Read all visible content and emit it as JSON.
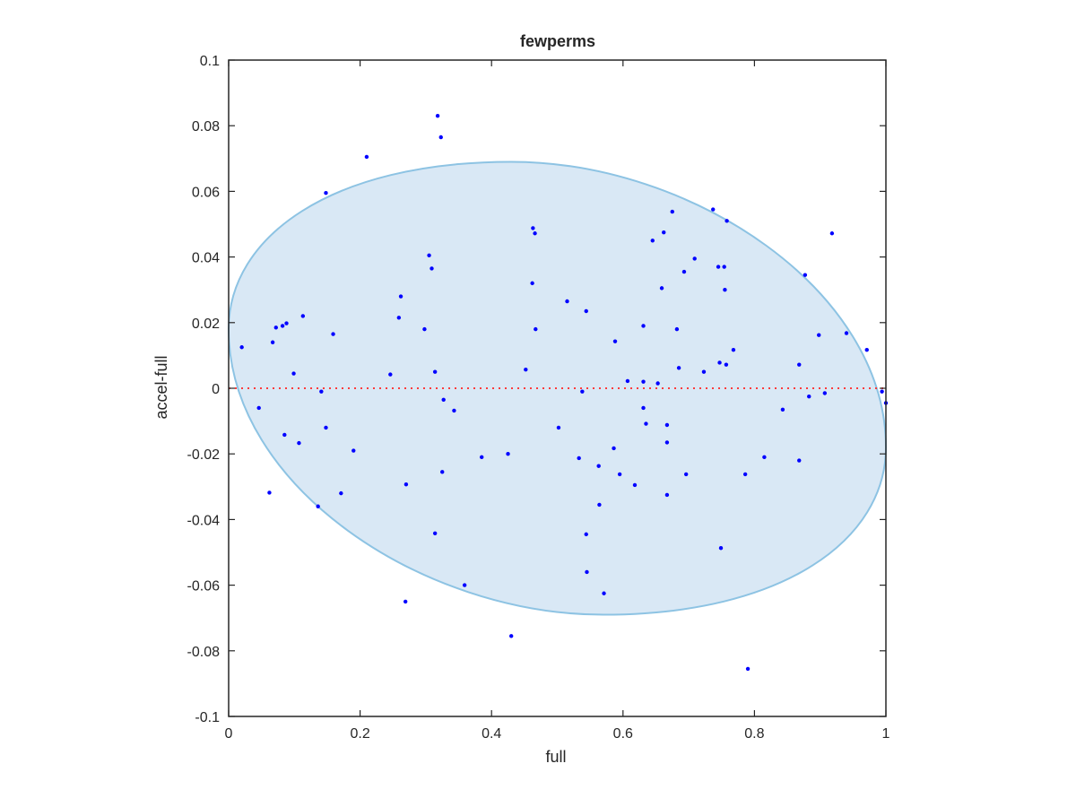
{
  "chart_data": {
    "type": "scatter",
    "title": "fewperms",
    "xlabel": "full",
    "ylabel": "accel-full",
    "xlim": [
      0,
      1
    ],
    "ylim": [
      -0.1,
      0.1
    ],
    "xticks": [
      0,
      0.2,
      0.4,
      0.6,
      0.8,
      1
    ],
    "xtick_labels": [
      "0",
      "0.2",
      "0.4",
      "0.6",
      "0.8",
      "1"
    ],
    "yticks": [
      -0.1,
      -0.08,
      -0.06,
      -0.04,
      -0.02,
      0,
      0.02,
      0.04,
      0.06,
      0.08,
      0.1
    ],
    "ytick_labels": [
      "-0.1",
      "-0.08",
      "-0.06",
      "-0.04",
      "-0.02",
      "0",
      "0.02",
      "0.04",
      "0.06",
      "0.08",
      "0.1"
    ],
    "grid": false,
    "colors": {
      "points": "#0000ff",
      "ellipse_fill": "#d9e8f5",
      "ellipse_edge": "#8dc3e3",
      "zero_line": "#ff3b3b",
      "axes": "#262626"
    },
    "ellipse": {
      "top_x": 0.43,
      "top_y": 0.069,
      "bottom_x": 0.57,
      "bottom_y": -0.069,
      "left_x": 0.0,
      "left_y": 0.018,
      "right_x": 1.0,
      "right_y": -0.018
    },
    "reference_line": {
      "y": 0,
      "style": "dotted"
    },
    "points": [
      {
        "x": 0.318,
        "y": 0.083
      },
      {
        "x": 0.323,
        "y": 0.0765
      },
      {
        "x": 0.21,
        "y": 0.0705
      },
      {
        "x": 0.148,
        "y": 0.0595
      },
      {
        "x": 0.463,
        "y": 0.0488
      },
      {
        "x": 0.466,
        "y": 0.0472
      },
      {
        "x": 0.737,
        "y": 0.0545
      },
      {
        "x": 0.675,
        "y": 0.0538
      },
      {
        "x": 0.758,
        "y": 0.051
      },
      {
        "x": 0.918,
        "y": 0.0472
      },
      {
        "x": 0.662,
        "y": 0.0475
      },
      {
        "x": 0.645,
        "y": 0.045
      },
      {
        "x": 0.305,
        "y": 0.0405
      },
      {
        "x": 0.309,
        "y": 0.0365
      },
      {
        "x": 0.709,
        "y": 0.0395
      },
      {
        "x": 0.745,
        "y": 0.037
      },
      {
        "x": 0.754,
        "y": 0.037
      },
      {
        "x": 0.693,
        "y": 0.0355
      },
      {
        "x": 0.877,
        "y": 0.0345
      },
      {
        "x": 0.462,
        "y": 0.032
      },
      {
        "x": 0.659,
        "y": 0.0305
      },
      {
        "x": 0.755,
        "y": 0.03
      },
      {
        "x": 0.262,
        "y": 0.028
      },
      {
        "x": 0.515,
        "y": 0.0265
      },
      {
        "x": 0.544,
        "y": 0.0235
      },
      {
        "x": 0.113,
        "y": 0.022
      },
      {
        "x": 0.259,
        "y": 0.0215
      },
      {
        "x": 0.088,
        "y": 0.0198
      },
      {
        "x": 0.082,
        "y": 0.019
      },
      {
        "x": 0.072,
        "y": 0.0185
      },
      {
        "x": 0.631,
        "y": 0.019
      },
      {
        "x": 0.298,
        "y": 0.018
      },
      {
        "x": 0.467,
        "y": 0.018
      },
      {
        "x": 0.682,
        "y": 0.018
      },
      {
        "x": 0.159,
        "y": 0.0165
      },
      {
        "x": 0.94,
        "y": 0.0168
      },
      {
        "x": 0.898,
        "y": 0.0162
      },
      {
        "x": 0.02,
        "y": 0.0125
      },
      {
        "x": 0.067,
        "y": 0.014
      },
      {
        "x": 0.588,
        "y": 0.0143
      },
      {
        "x": 0.768,
        "y": 0.0117
      },
      {
        "x": 0.971,
        "y": 0.0117
      },
      {
        "x": 0.747,
        "y": 0.0078
      },
      {
        "x": 0.757,
        "y": 0.0072
      },
      {
        "x": 0.868,
        "y": 0.0072
      },
      {
        "x": 0.685,
        "y": 0.0062
      },
      {
        "x": 0.452,
        "y": 0.0057
      },
      {
        "x": 0.314,
        "y": 0.005
      },
      {
        "x": 0.723,
        "y": 0.005
      },
      {
        "x": 0.099,
        "y": 0.0045
      },
      {
        "x": 0.246,
        "y": 0.0042
      },
      {
        "x": 0.607,
        "y": 0.0022
      },
      {
        "x": 0.631,
        "y": 0.002
      },
      {
        "x": 0.653,
        "y": 0.0015
      },
      {
        "x": 0.141,
        "y": -0.001
      },
      {
        "x": 0.538,
        "y": -0.001
      },
      {
        "x": 0.907,
        "y": -0.0015
      },
      {
        "x": 0.994,
        "y": -0.001
      },
      {
        "x": 0.883,
        "y": -0.0025
      },
      {
        "x": 0.327,
        "y": -0.0035
      },
      {
        "x": 0.046,
        "y": -0.006
      },
      {
        "x": 0.631,
        "y": -0.006
      },
      {
        "x": 0.343,
        "y": -0.0068
      },
      {
        "x": 0.843,
        "y": -0.0065
      },
      {
        "x": 1.0,
        "y": -0.0045
      },
      {
        "x": 0.635,
        "y": -0.0108
      },
      {
        "x": 0.667,
        "y": -0.0112
      },
      {
        "x": 0.148,
        "y": -0.012
      },
      {
        "x": 0.502,
        "y": -0.012
      },
      {
        "x": 0.085,
        "y": -0.0142
      },
      {
        "x": 0.107,
        "y": -0.0167
      },
      {
        "x": 0.667,
        "y": -0.0165
      },
      {
        "x": 0.586,
        "y": -0.0183
      },
      {
        "x": 0.19,
        "y": -0.019
      },
      {
        "x": 0.385,
        "y": -0.021
      },
      {
        "x": 0.425,
        "y": -0.02
      },
      {
        "x": 0.533,
        "y": -0.0213
      },
      {
        "x": 0.815,
        "y": -0.021
      },
      {
        "x": 0.868,
        "y": -0.022
      },
      {
        "x": 0.563,
        "y": -0.0237
      },
      {
        "x": 0.325,
        "y": -0.0255
      },
      {
        "x": 0.595,
        "y": -0.0262
      },
      {
        "x": 0.696,
        "y": -0.0262
      },
      {
        "x": 0.786,
        "y": -0.0262
      },
      {
        "x": 0.27,
        "y": -0.0293
      },
      {
        "x": 0.618,
        "y": -0.0295
      },
      {
        "x": 0.062,
        "y": -0.0318
      },
      {
        "x": 0.171,
        "y": -0.032
      },
      {
        "x": 0.667,
        "y": -0.0325
      },
      {
        "x": 0.564,
        "y": -0.0355
      },
      {
        "x": 0.136,
        "y": -0.036
      },
      {
        "x": 0.314,
        "y": -0.0442
      },
      {
        "x": 0.544,
        "y": -0.0445
      },
      {
        "x": 0.749,
        "y": -0.0487
      },
      {
        "x": 0.545,
        "y": -0.056
      },
      {
        "x": 0.359,
        "y": -0.06
      },
      {
        "x": 0.571,
        "y": -0.0625
      },
      {
        "x": 0.269,
        "y": -0.065
      },
      {
        "x": 0.43,
        "y": -0.0755
      },
      {
        "x": 0.79,
        "y": -0.0855
      }
    ]
  }
}
